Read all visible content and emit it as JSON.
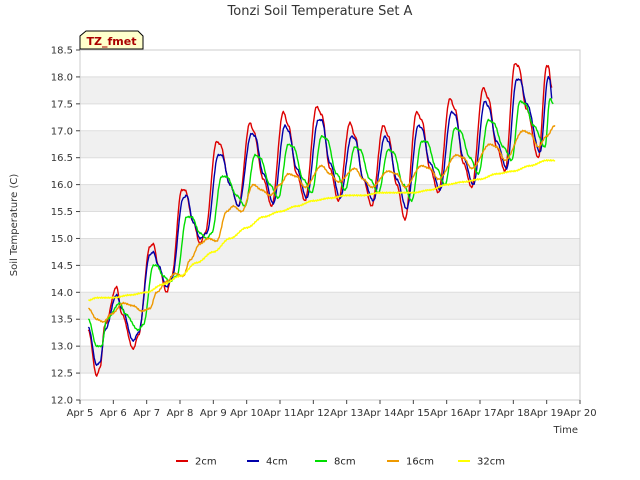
{
  "chart_data": {
    "type": "line",
    "title": "Tonzi Soil Temperature Set A",
    "xlabel": "Time",
    "ylabel": "Soil Temperature (C)",
    "xlim": [
      5,
      20
    ],
    "ylim": [
      12.0,
      18.5
    ],
    "x_ticks": [
      5,
      6,
      7,
      8,
      9,
      10,
      11,
      12,
      13,
      14,
      15,
      16,
      17,
      18,
      19,
      20
    ],
    "x_tick_labels": [
      "Apr 5",
      "Apr 6",
      "Apr 7",
      "Apr 8",
      "Apr 9",
      "Apr 10",
      "Apr 11",
      "Apr 12",
      "Apr 13",
      "Apr 14",
      "Apr 15",
      "Apr 16",
      "Apr 17",
      "Apr 18",
      "Apr 19",
      "Apr 20"
    ],
    "y_ticks": [
      12.0,
      12.5,
      13.0,
      13.5,
      14.0,
      14.5,
      15.0,
      15.5,
      16.0,
      16.5,
      17.0,
      17.5,
      18.0,
      18.5
    ],
    "y_tick_labels": [
      "12.0",
      "12.5",
      "13.0",
      "13.5",
      "14.0",
      "14.5",
      "15.0",
      "15.5",
      "16.0",
      "16.5",
      "17.0",
      "17.5",
      "18.0",
      "18.5"
    ],
    "grid": "horizontal bands",
    "legend_position": "bottom",
    "annotation": "TZ_fmet",
    "series": [
      {
        "name": "2cm",
        "color": "#dd0000",
        "x": [
          5.25,
          5.5,
          5.6,
          5.75,
          6.1,
          6.25,
          6.6,
          6.75,
          7.1,
          7.2,
          7.35,
          7.6,
          7.75,
          8.05,
          8.15,
          8.4,
          8.6,
          8.75,
          9.1,
          9.2,
          9.5,
          9.75,
          10.1,
          10.2,
          10.5,
          10.75,
          11.1,
          11.25,
          11.5,
          11.75,
          12.1,
          12.25,
          12.5,
          12.75,
          13.1,
          13.25,
          13.5,
          13.75,
          14.1,
          14.25,
          14.5,
          14.75,
          15.1,
          15.25,
          15.5,
          15.75,
          16.1,
          16.25,
          16.5,
          16.75,
          17.1,
          17.25,
          17.5,
          17.75,
          18.05,
          18.15,
          18.4,
          18.75,
          19.0,
          19.05,
          19.15
        ],
        "y": [
          13.3,
          12.45,
          12.6,
          13.4,
          14.1,
          13.6,
          12.95,
          13.2,
          14.85,
          14.9,
          14.5,
          14.0,
          14.3,
          15.9,
          15.9,
          15.3,
          14.9,
          15.1,
          16.8,
          16.75,
          16.0,
          15.6,
          17.15,
          17.0,
          16.1,
          15.6,
          17.35,
          17.1,
          16.2,
          15.7,
          17.45,
          17.3,
          16.3,
          15.7,
          17.15,
          16.9,
          16.1,
          15.6,
          17.1,
          16.9,
          16.0,
          15.35,
          17.35,
          17.2,
          16.3,
          15.85,
          17.6,
          17.4,
          16.4,
          15.95,
          17.8,
          17.6,
          16.7,
          16.25,
          18.25,
          18.2,
          17.4,
          16.5,
          18.2,
          18.2,
          17.8
        ]
      },
      {
        "name": "4cm",
        "color": "#0000aa",
        "x": [
          5.25,
          5.5,
          5.6,
          5.75,
          6.1,
          6.25,
          6.6,
          6.75,
          7.1,
          7.2,
          7.35,
          7.6,
          7.75,
          8.1,
          8.2,
          8.4,
          8.6,
          8.8,
          9.15,
          9.25,
          9.5,
          9.75,
          10.15,
          10.25,
          10.5,
          10.8,
          11.15,
          11.25,
          11.5,
          11.8,
          12.15,
          12.25,
          12.5,
          12.8,
          13.15,
          13.25,
          13.5,
          13.8,
          14.15,
          14.25,
          14.5,
          14.8,
          15.15,
          15.25,
          15.5,
          15.8,
          16.15,
          16.25,
          16.5,
          16.8,
          17.15,
          17.25,
          17.5,
          17.8,
          18.1,
          18.2,
          18.4,
          18.8,
          19.05,
          19.1,
          19.15
        ],
        "y": [
          13.35,
          12.65,
          12.7,
          13.3,
          13.95,
          13.7,
          13.1,
          13.25,
          14.7,
          14.75,
          14.5,
          14.1,
          14.25,
          15.75,
          15.8,
          15.3,
          15.0,
          15.1,
          16.55,
          16.55,
          16.0,
          15.6,
          16.95,
          16.9,
          16.2,
          15.65,
          17.1,
          17.0,
          16.3,
          15.75,
          17.2,
          17.2,
          16.4,
          15.75,
          16.9,
          16.85,
          16.1,
          15.7,
          16.9,
          16.8,
          16.1,
          15.55,
          17.1,
          17.05,
          16.4,
          15.9,
          17.35,
          17.3,
          16.5,
          16.0,
          17.55,
          17.45,
          16.8,
          16.3,
          17.95,
          17.95,
          17.5,
          16.6,
          18.0,
          17.95,
          17.6
        ]
      },
      {
        "name": "8cm",
        "color": "#00dd00",
        "x": [
          5.25,
          5.5,
          5.65,
          5.8,
          6.2,
          6.35,
          6.75,
          6.9,
          7.2,
          7.3,
          7.5,
          7.7,
          7.9,
          8.2,
          8.35,
          8.6,
          8.8,
          8.95,
          9.25,
          9.4,
          9.7,
          9.95,
          10.25,
          10.4,
          10.7,
          10.95,
          11.25,
          11.4,
          11.7,
          11.95,
          12.25,
          12.4,
          12.7,
          12.95,
          13.25,
          13.4,
          13.7,
          13.95,
          14.25,
          14.4,
          14.7,
          14.95,
          15.25,
          15.4,
          15.7,
          15.95,
          16.25,
          16.4,
          16.7,
          16.95,
          17.25,
          17.4,
          17.7,
          17.95,
          18.2,
          18.35,
          18.6,
          18.95,
          19.1,
          19.2
        ],
        "y": [
          13.5,
          13.0,
          13.0,
          13.5,
          13.8,
          13.6,
          13.3,
          13.4,
          14.5,
          14.5,
          14.3,
          14.2,
          14.3,
          15.4,
          15.4,
          15.1,
          15.0,
          15.1,
          16.15,
          16.15,
          15.8,
          15.6,
          16.55,
          16.5,
          16.0,
          15.75,
          16.75,
          16.7,
          16.1,
          15.85,
          16.9,
          16.85,
          16.2,
          15.9,
          16.7,
          16.65,
          16.1,
          15.85,
          16.65,
          16.6,
          16.0,
          15.7,
          16.8,
          16.8,
          16.3,
          16.0,
          17.05,
          17.0,
          16.5,
          16.2,
          17.2,
          17.15,
          16.7,
          16.45,
          17.55,
          17.5,
          17.1,
          16.7,
          17.6,
          17.5
        ]
      },
      {
        "name": "16cm",
        "color": "#ee9900",
        "x": [
          5.25,
          5.5,
          5.7,
          5.95,
          6.3,
          6.6,
          6.85,
          7.1,
          7.3,
          7.6,
          7.85,
          8.1,
          8.3,
          8.6,
          8.85,
          9.1,
          9.4,
          9.6,
          9.85,
          10.2,
          10.45,
          10.7,
          11.0,
          11.25,
          11.5,
          11.75,
          12.25,
          12.5,
          12.75,
          13.25,
          13.5,
          13.75,
          14.25,
          14.5,
          14.75,
          15.25,
          15.5,
          15.75,
          16.3,
          16.5,
          16.75,
          17.3,
          17.5,
          17.75,
          18.3,
          18.5,
          18.75,
          19.0,
          19.25
        ],
        "y": [
          13.7,
          13.5,
          13.45,
          13.6,
          13.8,
          13.75,
          13.65,
          13.7,
          14.0,
          14.2,
          14.35,
          14.3,
          14.6,
          14.9,
          15.0,
          14.95,
          15.5,
          15.6,
          15.5,
          16.0,
          15.9,
          15.8,
          16.0,
          16.2,
          16.15,
          15.95,
          16.35,
          16.2,
          16.05,
          16.3,
          16.1,
          15.95,
          16.25,
          16.2,
          15.95,
          16.35,
          16.3,
          16.1,
          16.55,
          16.5,
          16.3,
          16.75,
          16.7,
          16.45,
          17.0,
          16.95,
          16.7,
          16.9,
          17.1
        ]
      },
      {
        "name": "32cm",
        "color": "#ffff00",
        "x": [
          5.25,
          5.5,
          5.75,
          6.0,
          6.5,
          7.0,
          7.5,
          8.0,
          8.5,
          9.0,
          9.5,
          10.0,
          10.5,
          11.0,
          11.5,
          12.0,
          12.5,
          13.0,
          13.5,
          14.0,
          14.5,
          15.0,
          15.5,
          16.0,
          16.5,
          17.0,
          17.5,
          18.0,
          18.5,
          19.0,
          19.25
        ],
        "y": [
          13.85,
          13.9,
          13.9,
          13.9,
          13.95,
          14.0,
          14.15,
          14.3,
          14.55,
          14.75,
          15.0,
          15.2,
          15.4,
          15.5,
          15.6,
          15.7,
          15.75,
          15.8,
          15.8,
          15.85,
          15.85,
          15.85,
          15.9,
          16.0,
          16.05,
          16.1,
          16.2,
          16.25,
          16.35,
          16.45,
          16.45
        ]
      }
    ]
  }
}
